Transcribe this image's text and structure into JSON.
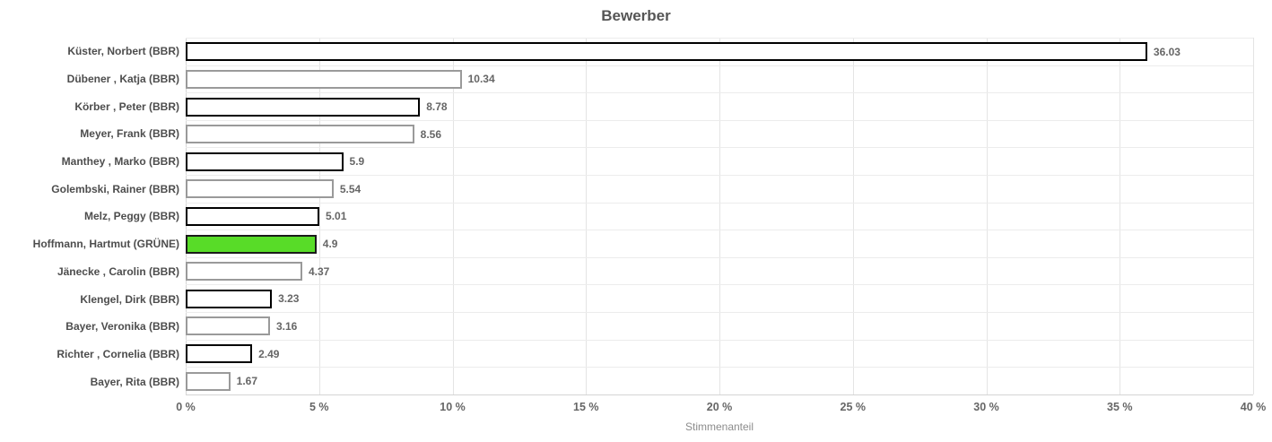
{
  "chart_data": {
    "type": "bar",
    "orientation": "horizontal",
    "title": "Bewerber",
    "xlabel": "Stimmenanteil",
    "ylabel": "",
    "xlim": [
      0,
      40
    ],
    "grid": true,
    "x_ticks": [
      "0 %",
      "5 %",
      "10 %",
      "15 %",
      "20 %",
      "25 %",
      "30 %",
      "35 %",
      "40 %"
    ],
    "colors": {
      "highlight_green": "#58dc28",
      "bar_fill_default": "#ffffff",
      "bar_border_dark": "#000000",
      "bar_border_gray": "#9a9a9a",
      "gridline": "#e4e4e4",
      "title_text": "#555555",
      "label_text": "#4d4d4d",
      "value_text": "#666666"
    },
    "rows": [
      {
        "label": "Küster, Norbert (BBR)",
        "value": 36.03,
        "value_label": "36.03",
        "fill": "#ffffff",
        "border": "#000000"
      },
      {
        "label": "Dübener , Katja (BBR)",
        "value": 10.34,
        "value_label": "10.34",
        "fill": "#ffffff",
        "border": "#9a9a9a"
      },
      {
        "label": "Körber , Peter (BBR)",
        "value": 8.78,
        "value_label": "8.78",
        "fill": "#ffffff",
        "border": "#000000"
      },
      {
        "label": "Meyer, Frank (BBR)",
        "value": 8.56,
        "value_label": "8.56",
        "fill": "#ffffff",
        "border": "#9a9a9a"
      },
      {
        "label": "Manthey , Marko (BBR)",
        "value": 5.9,
        "value_label": "5.9",
        "fill": "#ffffff",
        "border": "#000000"
      },
      {
        "label": "Golembski, Rainer (BBR)",
        "value": 5.54,
        "value_label": "5.54",
        "fill": "#ffffff",
        "border": "#9a9a9a"
      },
      {
        "label": "Melz, Peggy (BBR)",
        "value": 5.01,
        "value_label": "5.01",
        "fill": "#ffffff",
        "border": "#000000"
      },
      {
        "label": "Hoffmann, Hartmut (GRÜNE)",
        "value": 4.9,
        "value_label": "4.9",
        "fill": "#58dc28",
        "border": "#1a1a1a"
      },
      {
        "label": "Jänecke , Carolin (BBR)",
        "value": 4.37,
        "value_label": "4.37",
        "fill": "#ffffff",
        "border": "#9a9a9a"
      },
      {
        "label": "Klengel, Dirk (BBR)",
        "value": 3.23,
        "value_label": "3.23",
        "fill": "#ffffff",
        "border": "#000000"
      },
      {
        "label": "Bayer, Veronika (BBR)",
        "value": 3.16,
        "value_label": "3.16",
        "fill": "#ffffff",
        "border": "#9a9a9a"
      },
      {
        "label": "Richter , Cornelia (BBR)",
        "value": 2.49,
        "value_label": "2.49",
        "fill": "#ffffff",
        "border": "#000000"
      },
      {
        "label": "Bayer, Rita (BBR)",
        "value": 1.67,
        "value_label": "1.67",
        "fill": "#ffffff",
        "border": "#9a9a9a"
      }
    ]
  }
}
